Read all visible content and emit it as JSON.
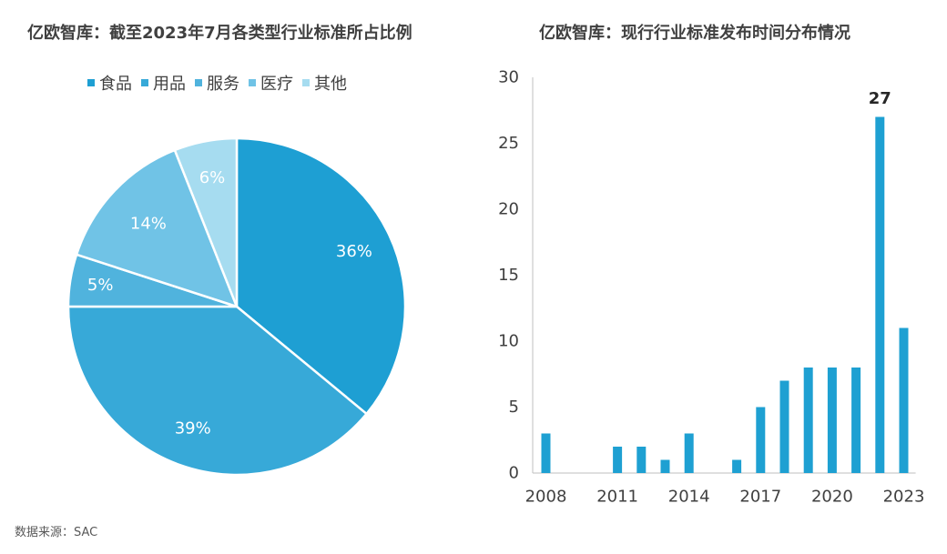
{
  "source": "数据来源：SAC",
  "colors": {
    "bar": "#1ea0d2",
    "text": "#404040",
    "axis": "#bfbfbf"
  },
  "chart_data": [
    {
      "type": "pie",
      "title": "亿欧智库：截至2023年7月各类型行业标准所占比例",
      "legend_position": "top",
      "categories": [
        "食品",
        "用品",
        "服务",
        "医疗",
        "其他"
      ],
      "values": [
        36,
        39,
        5,
        14,
        6
      ],
      "labels": [
        "36%",
        "39%",
        "5%",
        "14%",
        "6%"
      ],
      "colors": [
        "#1e9fd3",
        "#37a9d8",
        "#50b3dd",
        "#70c3e6",
        "#a6dcf0"
      ]
    },
    {
      "type": "bar",
      "title": "亿欧智库：现行行业标准发布时间分布情况",
      "x": [
        2008,
        2009,
        2010,
        2011,
        2012,
        2013,
        2014,
        2015,
        2016,
        2017,
        2018,
        2019,
        2020,
        2021,
        2022,
        2023
      ],
      "values": [
        3,
        0,
        0,
        2,
        2,
        1,
        3,
        0,
        1,
        5,
        7,
        8,
        8,
        8,
        27,
        11
      ],
      "x_tick_labels": [
        "2008",
        "2011",
        "2014",
        "2017",
        "2020",
        "2023"
      ],
      "y_ticks": [
        "0",
        "5",
        "10",
        "15",
        "20",
        "25",
        "30"
      ],
      "ylim": [
        0,
        30
      ],
      "grid": false,
      "annotations": [
        {
          "x": 2022,
          "text": "27"
        }
      ]
    }
  ]
}
